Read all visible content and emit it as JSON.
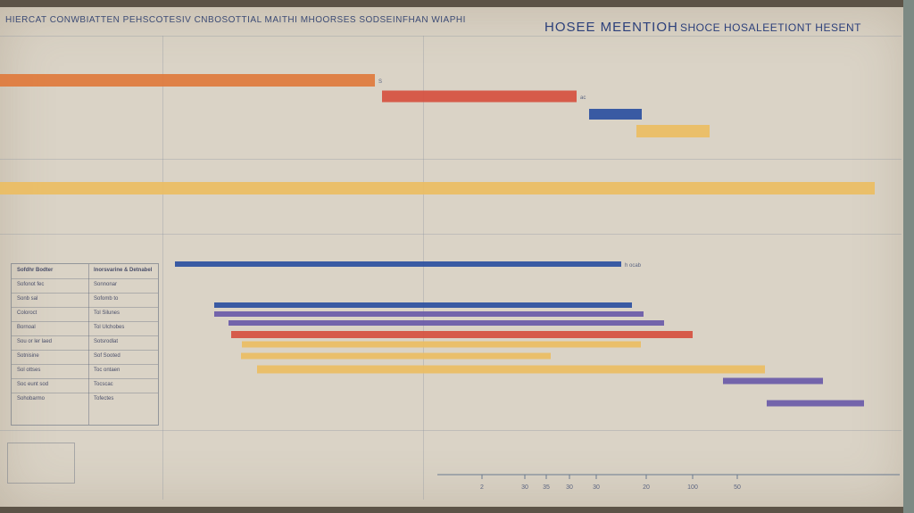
{
  "header": {
    "left_title": "HIERCAT CONWBIATTEN PEHSCOTESIV CNBOSOTTIAL MAITHI MHOORSES SODSEINFHAN WIAPHI",
    "right_title_1": "HOSEE MEENTIOH",
    "right_title_2": "SHOCE HOSALEETIONT HESENT"
  },
  "legend": {
    "col1_header": "Sofdhr Bodter",
    "col2_header": "Inorsvarine & Detnabel",
    "rows": [
      {
        "a": "Sofonot fec",
        "b": "Sonnonar"
      },
      {
        "a": "Sonb sal",
        "b": "Sofomb to"
      },
      {
        "a": "Coloroct",
        "b": "Tol Silunes"
      },
      {
        "a": "Bornoal",
        "b": "Tol Ulchobes"
      },
      {
        "a": "Sou or ler laed",
        "b": "Sotsrodlat"
      },
      {
        "a": "Sotnisine",
        "b": "Sof Sooted"
      },
      {
        "a": "Sol ottses",
        "b": "Toc ontaen"
      },
      {
        "a": "Soc eunt sod",
        "b": "Tocscac"
      },
      {
        "a": "Sohobarmo",
        "b": "Tofectes"
      }
    ]
  },
  "colors": {
    "orange": "#e07a3c",
    "red": "#d6503f",
    "blue": "#2b4fa0",
    "yellow": "#ecbd62",
    "purple": "#6a5aa8",
    "tick": "#6a7a90"
  },
  "chart_data": {
    "type": "bar",
    "orientation": "horizontal-gantt",
    "xlim": [
      0,
      100
    ],
    "x_tick_labels": [
      "2",
      "30",
      "35",
      "30",
      "30",
      "20",
      "100",
      "50"
    ],
    "bars": [
      {
        "start": 0,
        "end": 42.0,
        "color": "orange",
        "label": "S"
      },
      {
        "start": 42.8,
        "end": 64.6,
        "color": "red",
        "label": "ac"
      },
      {
        "start": 66.0,
        "end": 71.9,
        "color": "blue",
        "label": ""
      },
      {
        "start": 71.3,
        "end": 79.5,
        "color": "yellow",
        "label": ""
      },
      {
        "start": 0,
        "end": 98.0,
        "color": "yellow",
        "label": ""
      },
      {
        "start": 19.6,
        "end": 69.6,
        "color": "blue",
        "label": "h ocab"
      },
      {
        "start": 24.0,
        "end": 70.8,
        "color": "blue",
        "label": ""
      },
      {
        "start": 24.0,
        "end": 72.1,
        "color": "purple",
        "label": ""
      },
      {
        "start": 25.6,
        "end": 74.4,
        "color": "purple",
        "label": ""
      },
      {
        "start": 25.9,
        "end": 77.6,
        "color": "red",
        "label": ""
      },
      {
        "start": 27.1,
        "end": 71.8,
        "color": "yellow",
        "label": ""
      },
      {
        "start": 27.0,
        "end": 61.7,
        "color": "yellow",
        "label": ""
      },
      {
        "start": 28.8,
        "end": 85.7,
        "color": "yellow",
        "label": ""
      },
      {
        "start": 81.0,
        "end": 92.2,
        "color": "purple",
        "label": ""
      },
      {
        "start": 85.9,
        "end": 96.8,
        "color": "purple",
        "label": ""
      }
    ]
  }
}
